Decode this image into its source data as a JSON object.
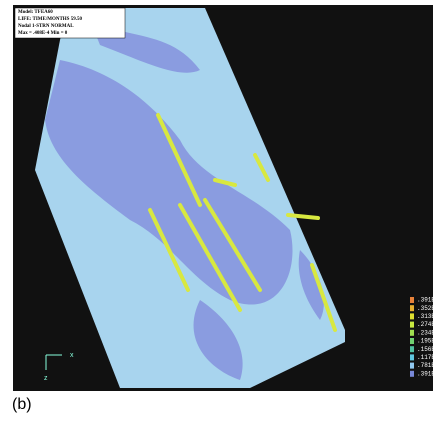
{
  "info": [
    "Model: TFEA60",
    "LIFE: TIME/MONTHS  59.50",
    "Nodal 1-STRN NORMAL",
    "Max = .408E-4  Min = 0"
  ],
  "legend": [
    {
      "label": ".391E-4",
      "color": "#e8823a"
    },
    {
      "label": ".352E-4",
      "color": "#e8b030"
    },
    {
      "label": ".313E-4",
      "color": "#e0e030"
    },
    {
      "label": ".274E-4",
      "color": "#c8e840"
    },
    {
      "label": ".234E-4",
      "color": "#a0e050"
    },
    {
      "label": ".195E-4",
      "color": "#70d070"
    },
    {
      "label": ".156E-4",
      "color": "#50c0a0"
    },
    {
      "label": ".117E-4",
      "color": "#60c8e0"
    },
    {
      "label": ".781E-5",
      "color": "#90c8f0"
    },
    {
      "label": ".391E-5",
      "color": "#7888d8"
    }
  ],
  "axes": {
    "x": "x",
    "z": "z"
  },
  "caption": "(b)"
}
